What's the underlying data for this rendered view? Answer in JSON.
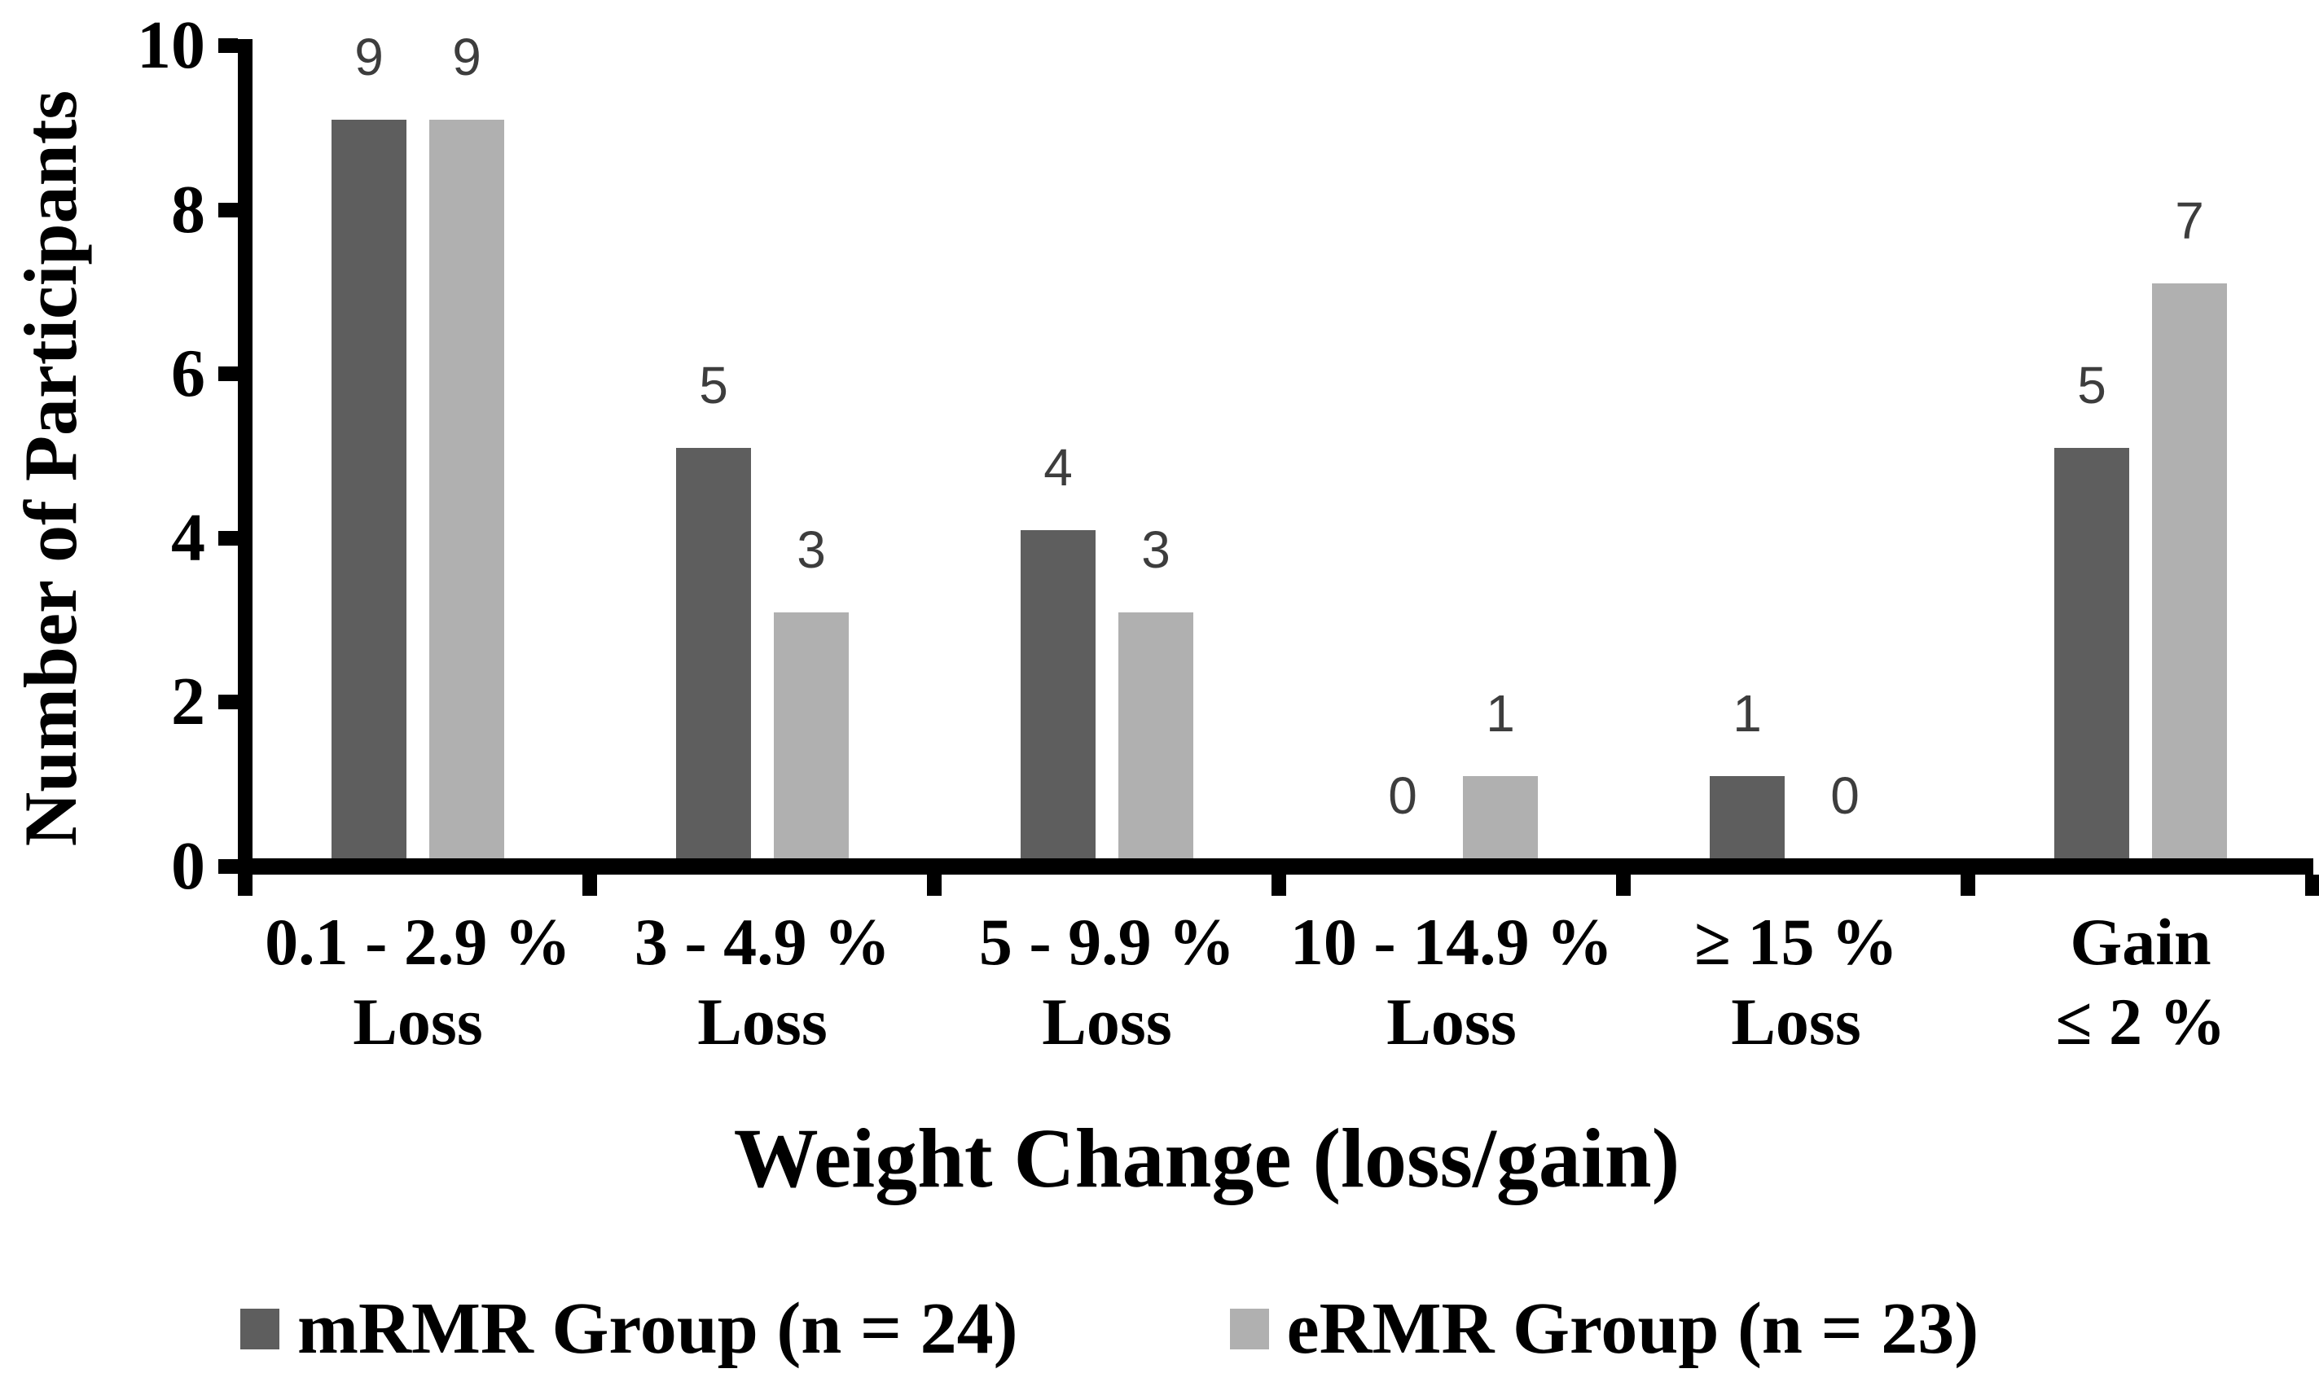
{
  "figure": {
    "background": "#ffffff"
  },
  "chart_data": {
    "type": "bar",
    "title": "",
    "xlabel": "Weight Change (loss/gain)",
    "ylabel": "Number of Participants",
    "ylim": [
      0,
      10
    ],
    "yticks": [
      0,
      2,
      4,
      6,
      8,
      10
    ],
    "grid": false,
    "legend_position": "bottom",
    "bar_value_labels": true,
    "value_label_color": "#3d3d3d",
    "axis_color": "#000000",
    "categories": [
      "0.1 - 2.9 %\nLoss",
      "3 - 4.9 %\nLoss",
      "5 - 9.9 %\nLoss",
      "10 - 14.9 %\nLoss",
      "≥ 15 %\nLoss",
      "Gain\n≤ 2 %"
    ],
    "series": [
      {
        "name": "mRMR Group (n = 24)",
        "color": "#5e5e5e",
        "values": [
          9,
          5,
          4,
          0,
          1,
          5
        ]
      },
      {
        "name": "eRMR Group (n = 23)",
        "color": "#b0b0b0",
        "values": [
          9,
          3,
          3,
          1,
          0,
          7
        ]
      }
    ]
  }
}
